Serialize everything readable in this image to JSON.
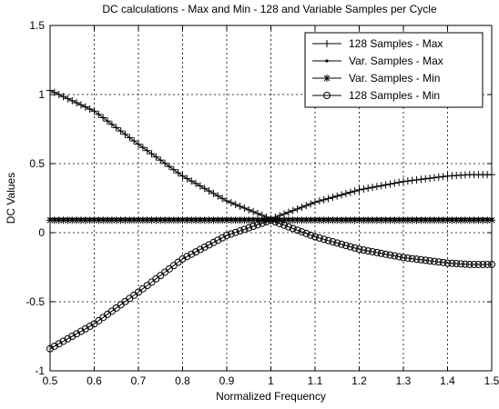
{
  "chart_data": {
    "type": "line",
    "title": "DC calculations - Max and Min - 128 and Variable Samples per Cycle",
    "xlabel": "Normalized Frequency",
    "ylabel": "DC Values",
    "xlim": [
      0.5,
      1.5
    ],
    "ylim": [
      -1,
      1.5
    ],
    "xticks": [
      "0.5",
      "0.6",
      "0.7",
      "0.8",
      "0.9",
      "1",
      "1.1",
      "1.2",
      "1.3",
      "1.4",
      "1.5"
    ],
    "yticks": [
      "-1",
      "-0.5",
      "0",
      "0.5",
      "1",
      "1.5"
    ],
    "grid": true,
    "legend_position": "top-right",
    "series": [
      {
        "name": "128 Samples - Max",
        "marker": "plus",
        "points": [
          [
            0.5,
            1.03
          ],
          [
            0.6,
            0.88
          ],
          [
            0.7,
            0.64
          ],
          [
            0.8,
            0.41
          ],
          [
            0.9,
            0.23
          ],
          [
            1.0,
            0.1
          ],
          [
            1.1,
            0.22
          ],
          [
            1.2,
            0.31
          ],
          [
            1.3,
            0.37
          ],
          [
            1.35,
            0.39
          ],
          [
            1.4,
            0.41
          ],
          [
            1.45,
            0.42
          ],
          [
            1.5,
            0.42
          ]
        ]
      },
      {
        "name": "Var. Samples - Max",
        "marker": "dot",
        "points": [
          [
            0.5,
            0.1
          ],
          [
            1.0,
            0.1
          ],
          [
            1.5,
            0.1
          ]
        ]
      },
      {
        "name": "Var. Samples - Min",
        "marker": "star",
        "points": [
          [
            0.5,
            0.09
          ],
          [
            1.0,
            0.09
          ],
          [
            1.5,
            0.09
          ]
        ]
      },
      {
        "name": "128 Samples - Min",
        "marker": "circle",
        "points": [
          [
            0.5,
            -0.84
          ],
          [
            0.6,
            -0.66
          ],
          [
            0.7,
            -0.43
          ],
          [
            0.8,
            -0.19
          ],
          [
            0.9,
            -0.02
          ],
          [
            1.0,
            0.09
          ],
          [
            1.1,
            -0.03
          ],
          [
            1.2,
            -0.12
          ],
          [
            1.3,
            -0.18
          ],
          [
            1.35,
            -0.2
          ],
          [
            1.4,
            -0.22
          ],
          [
            1.45,
            -0.23
          ],
          [
            1.5,
            -0.23
          ]
        ]
      }
    ]
  }
}
